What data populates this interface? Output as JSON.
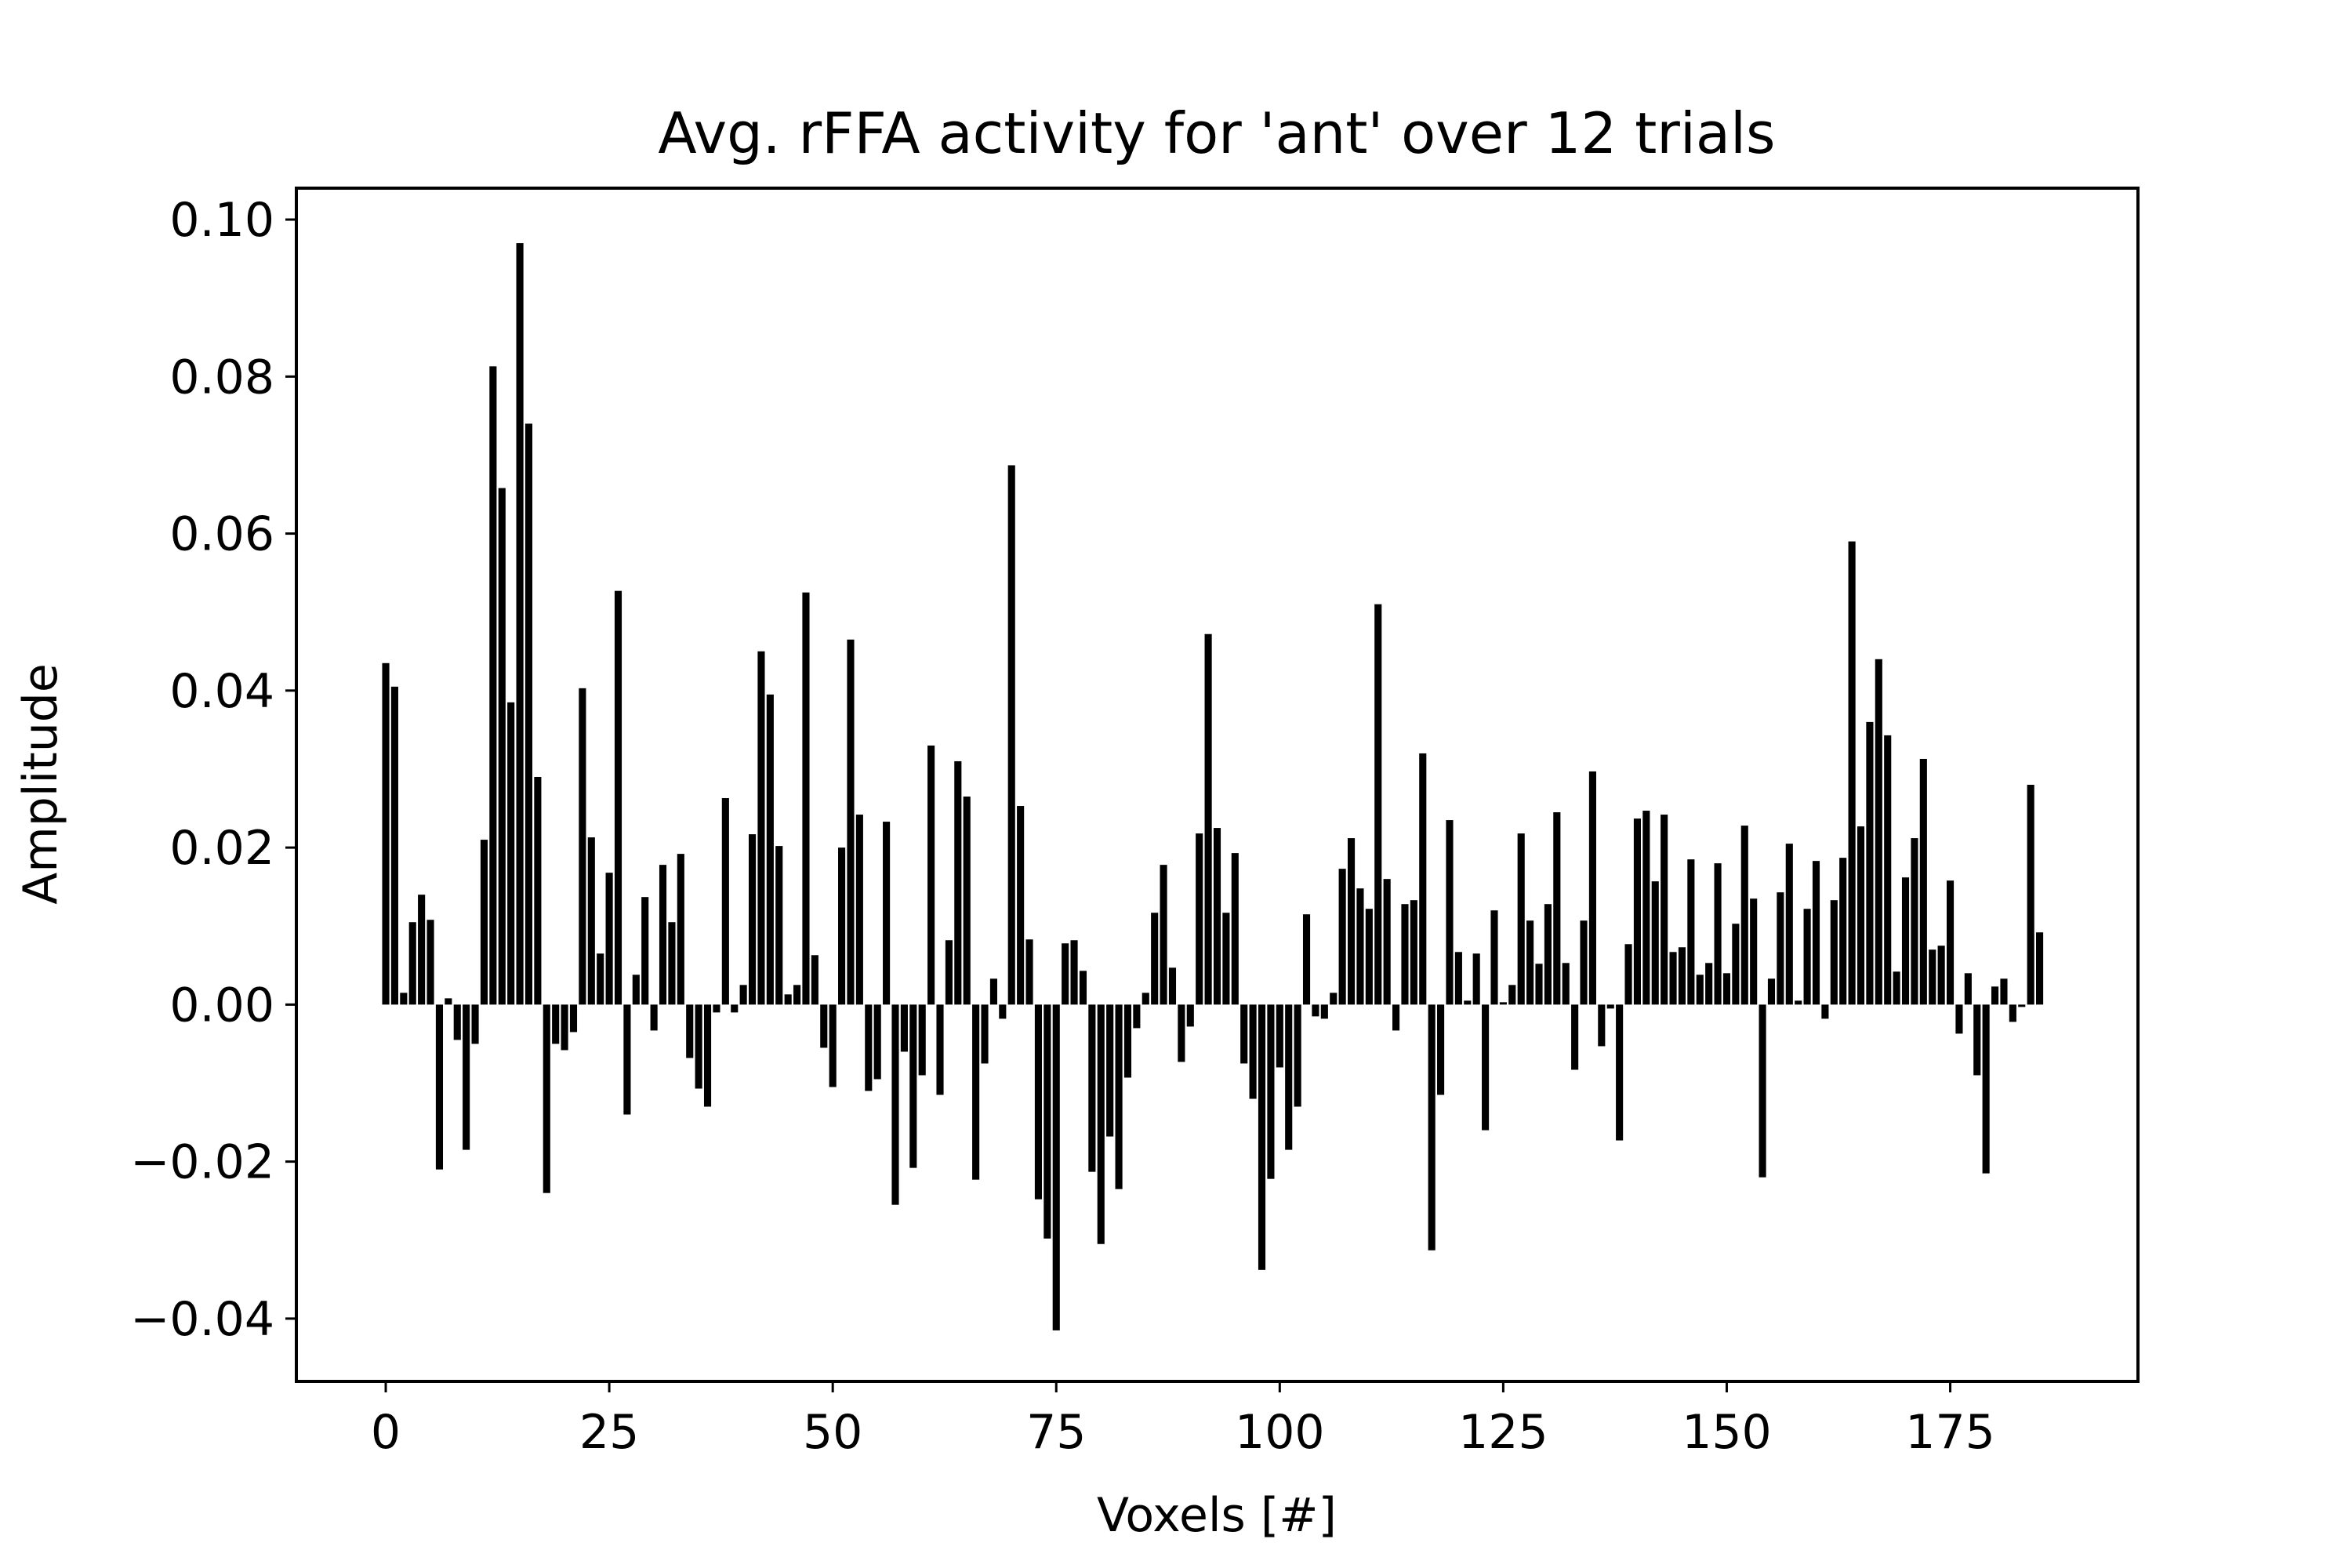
{
  "chart_data": {
    "type": "bar",
    "title": "Avg. rFFA activity for 'ant' over 12 trials",
    "xlabel": "Voxels [#]",
    "ylabel": "Amplitude",
    "xlim": [
      -10,
      196
    ],
    "ylim": [
      -0.048,
      0.104
    ],
    "grid": false,
    "bar_color": "#000000",
    "x_ticks": [
      0,
      25,
      50,
      75,
      100,
      125,
      150,
      175
    ],
    "x_tick_labels": [
      "0",
      "25",
      "50",
      "75",
      "100",
      "125",
      "150",
      "175"
    ],
    "y_ticks": [
      -0.04,
      -0.02,
      0.0,
      0.02,
      0.04,
      0.06,
      0.08,
      0.1
    ],
    "y_tick_labels": [
      "−0.04",
      "−0.02",
      "0.00",
      "0.02",
      "0.04",
      "0.06",
      "0.08",
      "0.10"
    ],
    "x_start": 0,
    "values": [
      0.0435,
      0.0405,
      0.0015,
      0.0105,
      0.014,
      0.0108,
      -0.021,
      0.0008,
      -0.0045,
      -0.0185,
      -0.005,
      0.021,
      0.0813,
      0.0658,
      0.0385,
      0.097,
      0.074,
      0.029,
      -0.024,
      -0.005,
      -0.0058,
      -0.0035,
      0.0403,
      0.0213,
      0.0065,
      0.0168,
      0.0527,
      -0.014,
      0.0038,
      0.0137,
      -0.0033,
      0.0178,
      0.0105,
      0.0192,
      -0.0068,
      -0.0107,
      -0.013,
      -0.001,
      0.0263,
      -0.001,
      0.0025,
      0.0217,
      0.045,
      0.0395,
      0.0202,
      0.0013,
      0.0025,
      0.0525,
      0.0063,
      -0.0055,
      -0.0105,
      0.02,
      0.0465,
      0.0242,
      -0.011,
      -0.0095,
      0.0233,
      -0.0255,
      -0.006,
      -0.0208,
      -0.009,
      0.033,
      -0.0115,
      0.0082,
      0.031,
      0.0265,
      -0.0223,
      -0.0075,
      0.0033,
      -0.0018,
      0.0687,
      0.0253,
      0.0083,
      -0.0248,
      -0.0298,
      -0.0415,
      0.0078,
      0.0082,
      0.0043,
      -0.0213,
      -0.0305,
      -0.0168,
      -0.0235,
      -0.0093,
      -0.003,
      0.0015,
      0.0117,
      0.0178,
      0.0047,
      -0.0073,
      -0.0028,
      0.0218,
      0.0472,
      0.0225,
      0.0117,
      0.0193,
      -0.0075,
      -0.012,
      -0.0338,
      -0.0222,
      -0.008,
      -0.0185,
      -0.013,
      0.0115,
      -0.0015,
      -0.0018,
      0.0015,
      0.0173,
      0.0212,
      0.0148,
      0.0122,
      0.051,
      0.016,
      -0.0033,
      0.0128,
      0.0133,
      0.032,
      -0.0313,
      -0.0115,
      0.0235,
      0.0067,
      0.0005,
      0.0065,
      -0.016,
      0.012,
      0.0003,
      0.0025,
      0.0218,
      0.0107,
      0.0052,
      0.0128,
      0.0245,
      0.0053,
      -0.0083,
      0.0107,
      0.0297,
      -0.0053,
      -0.0005,
      -0.0173,
      0.0077,
      0.0237,
      0.0247,
      0.0157,
      0.0242,
      0.0067,
      0.0073,
      0.0185,
      0.0038,
      0.0053,
      0.018,
      0.004,
      0.0103,
      0.0228,
      0.0135,
      -0.022,
      0.0033,
      0.0143,
      0.0205,
      0.0005,
      0.0122,
      0.0183,
      -0.0018,
      0.0133,
      0.0187,
      0.059,
      0.0227,
      0.036,
      0.044,
      0.0343,
      0.0042,
      0.0162,
      0.0212,
      0.0313,
      0.007,
      0.0075,
      0.0158,
      -0.0037,
      0.004,
      -0.009,
      -0.0215,
      0.0023,
      0.0033,
      -0.0022,
      -0.0003,
      0.028,
      0.0092
    ]
  }
}
